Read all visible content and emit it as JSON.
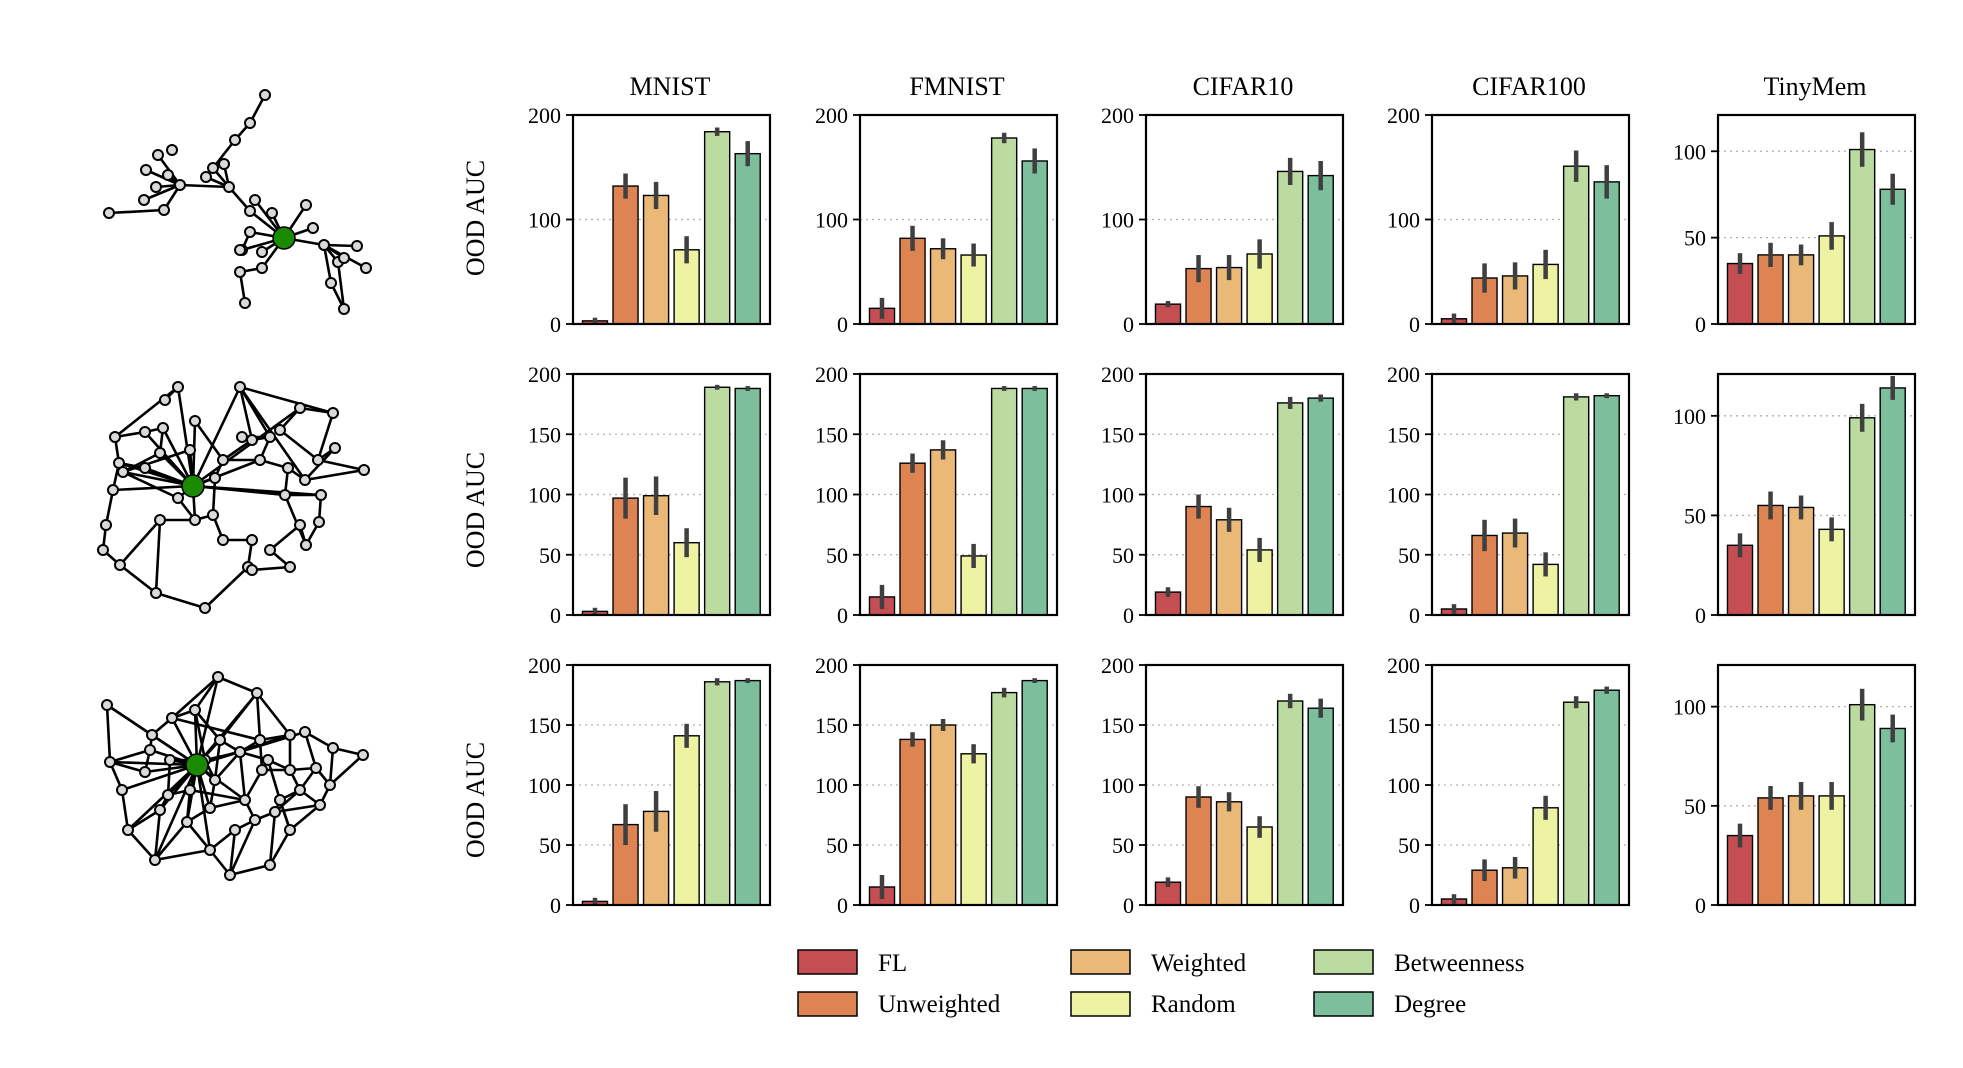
{
  "figure": {
    "ylabel": "OOD AUC",
    "columns": [
      "MNIST",
      "FMNIST",
      "CIFAR10",
      "CIFAR100",
      "TinyMem"
    ]
  },
  "series_colors": {
    "FL": "#c44e52",
    "Unweighted": "#dd8452",
    "Weighted": "#ebb977",
    "Random": "#eef3a4",
    "Betweenness": "#bcdba1",
    "Degree": "#7dbf9c"
  },
  "graph_colors": {
    "center": "#1a8a00",
    "node": "#d9d9d9",
    "edge": "#000000"
  },
  "legend": {
    "entries": [
      "FL",
      "Unweighted",
      "Weighted",
      "Random",
      "Betweenness",
      "Degree"
    ]
  },
  "chart_data": [
    {
      "type": "bar",
      "row": 0,
      "title": "MNIST",
      "ylabel": "OOD AUC",
      "ylim": [
        0,
        200
      ],
      "yticks": [
        0,
        100,
        200
      ],
      "categories": [
        "FL",
        "Unweighted",
        "Weighted",
        "Random",
        "Betweenness",
        "Degree"
      ],
      "values": [
        3,
        132,
        123,
        71,
        184,
        163
      ],
      "errors": [
        3,
        12,
        13,
        13,
        4,
        12
      ]
    },
    {
      "type": "bar",
      "row": 0,
      "title": "FMNIST",
      "ylabel": "",
      "ylim": [
        0,
        200
      ],
      "yticks": [
        0,
        100,
        200
      ],
      "categories": [
        "FL",
        "Unweighted",
        "Weighted",
        "Random",
        "Betweenness",
        "Degree"
      ],
      "values": [
        15,
        82,
        72,
        66,
        178,
        156
      ],
      "errors": [
        10,
        12,
        10,
        11,
        5,
        12
      ]
    },
    {
      "type": "bar",
      "row": 0,
      "title": "CIFAR10",
      "ylabel": "",
      "ylim": [
        0,
        200
      ],
      "yticks": [
        0,
        100,
        200
      ],
      "categories": [
        "FL",
        "Unweighted",
        "Weighted",
        "Random",
        "Betweenness",
        "Degree"
      ],
      "values": [
        19,
        53,
        54,
        67,
        146,
        142
      ],
      "errors": [
        3,
        13,
        12,
        14,
        13,
        14
      ]
    },
    {
      "type": "bar",
      "row": 0,
      "title": "CIFAR100",
      "ylabel": "",
      "ylim": [
        0,
        200
      ],
      "yticks": [
        0,
        100,
        200
      ],
      "categories": [
        "FL",
        "Unweighted",
        "Weighted",
        "Random",
        "Betweenness",
        "Degree"
      ],
      "values": [
        5,
        44,
        46,
        57,
        151,
        136
      ],
      "errors": [
        5,
        14,
        13,
        14,
        15,
        16
      ]
    },
    {
      "type": "bar",
      "row": 0,
      "title": "TinyMem",
      "ylabel": "",
      "ylim": [
        0,
        121
      ],
      "yticks": [
        0,
        50,
        100
      ],
      "categories": [
        "FL",
        "Unweighted",
        "Weighted",
        "Random",
        "Betweenness",
        "Degree"
      ],
      "values": [
        35,
        40,
        40,
        51,
        101,
        78
      ],
      "errors": [
        6,
        7,
        6,
        8,
        10,
        9
      ]
    },
    {
      "type": "bar",
      "row": 1,
      "title": "",
      "ylabel": "OOD AUC",
      "ylim": [
        0,
        200
      ],
      "yticks": [
        0,
        50,
        100,
        150,
        200
      ],
      "categories": [
        "FL",
        "Unweighted",
        "Weighted",
        "Random",
        "Betweenness",
        "Degree"
      ],
      "values": [
        3,
        97,
        99,
        60,
        189,
        188
      ],
      "errors": [
        3,
        17,
        16,
        12,
        2,
        2
      ]
    },
    {
      "type": "bar",
      "row": 1,
      "title": "",
      "ylabel": "",
      "ylim": [
        0,
        200
      ],
      "yticks": [
        0,
        50,
        100,
        150,
        200
      ],
      "categories": [
        "FL",
        "Unweighted",
        "Weighted",
        "Random",
        "Betweenness",
        "Degree"
      ],
      "values": [
        15,
        126,
        137,
        49,
        188,
        188
      ],
      "errors": [
        10,
        8,
        8,
        10,
        2,
        2
      ]
    },
    {
      "type": "bar",
      "row": 1,
      "title": "",
      "ylabel": "",
      "ylim": [
        0,
        200
      ],
      "yticks": [
        0,
        50,
        100,
        150,
        200
      ],
      "categories": [
        "FL",
        "Unweighted",
        "Weighted",
        "Random",
        "Betweenness",
        "Degree"
      ],
      "values": [
        19,
        90,
        79,
        54,
        176,
        180
      ],
      "errors": [
        4,
        10,
        10,
        10,
        5,
        3
      ]
    },
    {
      "type": "bar",
      "row": 1,
      "title": "",
      "ylabel": "",
      "ylim": [
        0,
        200
      ],
      "yticks": [
        0,
        50,
        100,
        150,
        200
      ],
      "categories": [
        "FL",
        "Unweighted",
        "Weighted",
        "Random",
        "Betweenness",
        "Degree"
      ],
      "values": [
        5,
        66,
        68,
        42,
        181,
        182
      ],
      "errors": [
        4,
        13,
        12,
        10,
        3,
        2
      ]
    },
    {
      "type": "bar",
      "row": 1,
      "title": "",
      "ylabel": "",
      "ylim": [
        0,
        121
      ],
      "yticks": [
        0,
        50,
        100
      ],
      "categories": [
        "FL",
        "Unweighted",
        "Weighted",
        "Random",
        "Betweenness",
        "Degree"
      ],
      "values": [
        35,
        55,
        54,
        43,
        99,
        114
      ],
      "errors": [
        6,
        7,
        6,
        6,
        7,
        6
      ]
    },
    {
      "type": "bar",
      "row": 2,
      "title": "",
      "ylabel": "OOD AUC",
      "ylim": [
        0,
        200
      ],
      "yticks": [
        0,
        50,
        100,
        150,
        200
      ],
      "categories": [
        "FL",
        "Unweighted",
        "Weighted",
        "Random",
        "Betweenness",
        "Degree"
      ],
      "values": [
        3,
        67,
        78,
        141,
        186,
        187
      ],
      "errors": [
        3,
        17,
        17,
        10,
        3,
        2
      ]
    },
    {
      "type": "bar",
      "row": 2,
      "title": "",
      "ylabel": "",
      "ylim": [
        0,
        200
      ],
      "yticks": [
        0,
        50,
        100,
        150,
        200
      ],
      "categories": [
        "FL",
        "Unweighted",
        "Weighted",
        "Random",
        "Betweenness",
        "Degree"
      ],
      "values": [
        15,
        138,
        150,
        126,
        177,
        187
      ],
      "errors": [
        10,
        6,
        5,
        8,
        4,
        2
      ]
    },
    {
      "type": "bar",
      "row": 2,
      "title": "",
      "ylabel": "",
      "ylim": [
        0,
        200
      ],
      "yticks": [
        0,
        50,
        100,
        150,
        200
      ],
      "categories": [
        "FL",
        "Unweighted",
        "Weighted",
        "Random",
        "Betweenness",
        "Degree"
      ],
      "values": [
        19,
        90,
        86,
        65,
        170,
        164
      ],
      "errors": [
        4,
        9,
        8,
        9,
        6,
        8
      ]
    },
    {
      "type": "bar",
      "row": 2,
      "title": "",
      "ylabel": "",
      "ylim": [
        0,
        200
      ],
      "yticks": [
        0,
        50,
        100,
        150,
        200
      ],
      "categories": [
        "FL",
        "Unweighted",
        "Weighted",
        "Random",
        "Betweenness",
        "Degree"
      ],
      "values": [
        5,
        29,
        31,
        81,
        169,
        179
      ],
      "errors": [
        4,
        9,
        9,
        10,
        5,
        3
      ]
    },
    {
      "type": "bar",
      "row": 2,
      "title": "",
      "ylabel": "",
      "ylim": [
        0,
        121
      ],
      "yticks": [
        0,
        50,
        100
      ],
      "categories": [
        "FL",
        "Unweighted",
        "Weighted",
        "Random",
        "Betweenness",
        "Degree"
      ],
      "values": [
        35,
        54,
        55,
        55,
        101,
        89
      ],
      "errors": [
        6,
        6,
        7,
        7,
        8,
        7
      ]
    }
  ]
}
